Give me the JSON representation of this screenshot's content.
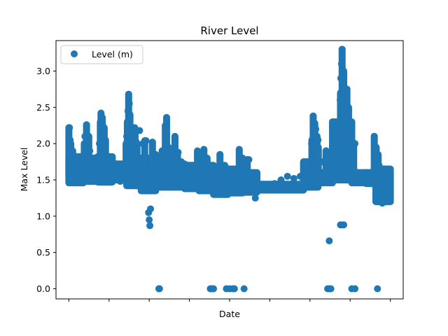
{
  "chart_data": {
    "type": "scatter",
    "title": "River Level",
    "xlabel": "Date",
    "ylabel": "Max Level",
    "ylim": [
      -0.14,
      3.42
    ],
    "yticks": [
      0.0,
      0.5,
      1.0,
      1.5,
      2.0,
      2.5,
      3.0
    ],
    "ytick_labels": [
      "0.0",
      "0.5",
      "1.0",
      "1.5",
      "2.0",
      "2.5",
      "3.0"
    ],
    "xlim": [
      -0.04,
      1.04
    ],
    "xticks": [
      0.0,
      0.125,
      0.25,
      0.375,
      0.5,
      0.625,
      0.75,
      0.875,
      1.0
    ],
    "xtick_labels": [
      "",
      "",
      "",
      "",
      "",
      "",
      "",
      "",
      ""
    ],
    "grid": false,
    "legend_position": "top-left",
    "color": "#1f77b4",
    "series": [
      {
        "name": "Level (m)",
        "points": [
          [
            0.0,
            1.5
          ],
          [
            0.02,
            1.6
          ],
          [
            0.04,
            1.55
          ],
          [
            0.06,
            1.7
          ],
          [
            0.08,
            1.62
          ],
          [
            0.1,
            1.75
          ],
          [
            0.12,
            1.58
          ],
          [
            0.14,
            1.5
          ],
          [
            0.16,
            1.48
          ],
          [
            0.18,
            1.65
          ],
          [
            0.2,
            1.68
          ],
          [
            0.22,
            1.55
          ],
          [
            0.24,
            1.6
          ],
          [
            0.26,
            1.45
          ],
          [
            0.28,
            1.52
          ],
          [
            0.3,
            1.58
          ],
          [
            0.32,
            1.5
          ],
          [
            0.34,
            1.62
          ],
          [
            0.36,
            1.55
          ],
          [
            0.38,
            1.48
          ],
          [
            0.4,
            1.45
          ],
          [
            0.42,
            1.5
          ],
          [
            0.44,
            1.55
          ],
          [
            0.46,
            1.42
          ],
          [
            0.48,
            1.45
          ],
          [
            0.5,
            1.4
          ],
          [
            0.52,
            1.4
          ],
          [
            0.54,
            1.4
          ],
          [
            0.56,
            1.4
          ],
          [
            0.58,
            1.4
          ],
          [
            0.6,
            1.4
          ],
          [
            0.62,
            1.4
          ],
          [
            0.64,
            1.45
          ],
          [
            0.66,
            1.5
          ],
          [
            0.68,
            1.55
          ],
          [
            0.7,
            1.52
          ],
          [
            0.72,
            1.55
          ],
          [
            0.74,
            1.5
          ],
          [
            0.76,
            1.6
          ],
          [
            0.78,
            1.55
          ],
          [
            0.8,
            1.6
          ],
          [
            0.82,
            1.52
          ],
          [
            0.84,
            1.55
          ],
          [
            0.86,
            1.5
          ],
          [
            0.88,
            1.55
          ],
          [
            0.9,
            1.48
          ],
          [
            0.92,
            1.5
          ],
          [
            0.94,
            1.45
          ],
          [
            0.96,
            1.4
          ],
          [
            0.98,
            1.45
          ],
          [
            1.0,
            1.5
          ],
          [
            0.002,
            2.22
          ],
          [
            0.004,
            2.05
          ],
          [
            0.006,
            1.95
          ],
          [
            0.008,
            1.8
          ],
          [
            0.05,
            2.1
          ],
          [
            0.055,
            2.26
          ],
          [
            0.06,
            2.05
          ],
          [
            0.065,
            1.9
          ],
          [
            0.095,
            2.0
          ],
          [
            0.1,
            2.42
          ],
          [
            0.104,
            2.35
          ],
          [
            0.108,
            2.1
          ],
          [
            0.11,
            2.22
          ],
          [
            0.112,
            2.05
          ],
          [
            0.18,
            2.1
          ],
          [
            0.182,
            2.28
          ],
          [
            0.184,
            2.45
          ],
          [
            0.186,
            2.68
          ],
          [
            0.188,
            2.55
          ],
          [
            0.19,
            2.35
          ],
          [
            0.2,
            2.15
          ],
          [
            0.205,
            2.22
          ],
          [
            0.21,
            2.02
          ],
          [
            0.22,
            2.18
          ],
          [
            0.23,
            2.0
          ],
          [
            0.24,
            2.04
          ],
          [
            0.248,
            1.05
          ],
          [
            0.25,
            0.95
          ],
          [
            0.252,
            0.87
          ],
          [
            0.254,
            1.1
          ],
          [
            0.26,
            2.02
          ],
          [
            0.27,
            1.85
          ],
          [
            0.28,
            0.0
          ],
          [
            0.282,
            0.0
          ],
          [
            0.3,
            1.95
          ],
          [
            0.302,
            2.25
          ],
          [
            0.304,
            2.36
          ],
          [
            0.31,
            1.9
          ],
          [
            0.33,
            2.08
          ],
          [
            0.34,
            1.88
          ],
          [
            0.35,
            1.75
          ],
          [
            0.42,
            1.92
          ],
          [
            0.43,
            1.75
          ],
          [
            0.44,
            0.0
          ],
          [
            0.445,
            0.0
          ],
          [
            0.45,
            0.0
          ],
          [
            0.47,
            1.85
          ],
          [
            0.48,
            1.65
          ],
          [
            0.49,
            0.0
          ],
          [
            0.5,
            0.0
          ],
          [
            0.51,
            0.0
          ],
          [
            0.515,
            0.0
          ],
          [
            0.53,
            1.92
          ],
          [
            0.54,
            1.8
          ],
          [
            0.545,
            0.0
          ],
          [
            0.56,
            1.78
          ],
          [
            0.58,
            1.25
          ],
          [
            0.75,
            1.6
          ],
          [
            0.755,
            2.0
          ],
          [
            0.76,
            2.38
          ],
          [
            0.762,
            2.28
          ],
          [
            0.768,
            2.2
          ],
          [
            0.775,
            2.05
          ],
          [
            0.79,
            1.75
          ],
          [
            0.8,
            1.9
          ],
          [
            0.81,
            0.66
          ],
          [
            0.805,
            0.0
          ],
          [
            0.81,
            0.0
          ],
          [
            0.815,
            0.0
          ],
          [
            0.84,
            1.9
          ],
          [
            0.842,
            2.2
          ],
          [
            0.844,
            2.6
          ],
          [
            0.846,
            2.9
          ],
          [
            0.848,
            3.1
          ],
          [
            0.85,
            3.3
          ],
          [
            0.852,
            3.0
          ],
          [
            0.854,
            2.75
          ],
          [
            0.856,
            2.5
          ],
          [
            0.858,
            2.3
          ],
          [
            0.86,
            2.7
          ],
          [
            0.865,
            2.75
          ],
          [
            0.87,
            2.45
          ],
          [
            0.875,
            2.2
          ],
          [
            0.85,
            0.88
          ],
          [
            0.855,
            0.88
          ],
          [
            0.845,
            0.88
          ],
          [
            0.88,
            2.16
          ],
          [
            0.885,
            1.92
          ],
          [
            0.89,
            2.0
          ],
          [
            0.88,
            0.0
          ],
          [
            0.89,
            0.0
          ],
          [
            0.95,
            2.1
          ],
          [
            0.955,
            1.95
          ],
          [
            0.96,
            1.8
          ],
          [
            0.965,
            1.7
          ],
          [
            0.96,
            0.0
          ],
          [
            0.97,
            1.25
          ],
          [
            0.975,
            1.18
          ],
          [
            0.98,
            1.3
          ],
          [
            0.99,
            1.35
          ]
        ]
      }
    ],
    "bands": [
      {
        "x0": 0.0,
        "x1": 0.045,
        "y0": 1.46,
        "y1": 1.82
      },
      {
        "x0": 0.045,
        "x1": 0.09,
        "y0": 1.48,
        "y1": 1.8
      },
      {
        "x0": 0.09,
        "x1": 0.135,
        "y0": 1.47,
        "y1": 1.82
      },
      {
        "x0": 0.135,
        "x1": 0.18,
        "y0": 1.5,
        "y1": 1.72
      },
      {
        "x0": 0.18,
        "x1": 0.225,
        "y0": 1.42,
        "y1": 1.8
      },
      {
        "x0": 0.225,
        "x1": 0.27,
        "y0": 1.35,
        "y1": 1.8
      },
      {
        "x0": 0.27,
        "x1": 0.315,
        "y0": 1.4,
        "y1": 1.72
      },
      {
        "x0": 0.315,
        "x1": 0.36,
        "y0": 1.4,
        "y1": 1.68
      },
      {
        "x0": 0.36,
        "x1": 0.405,
        "y0": 1.38,
        "y1": 1.7
      },
      {
        "x0": 0.405,
        "x1": 0.45,
        "y0": 1.35,
        "y1": 1.7
      },
      {
        "x0": 0.45,
        "x1": 0.495,
        "y0": 1.3,
        "y1": 1.62
      },
      {
        "x0": 0.495,
        "x1": 0.54,
        "y0": 1.32,
        "y1": 1.65
      },
      {
        "x0": 0.54,
        "x1": 0.585,
        "y0": 1.33,
        "y1": 1.6
      },
      {
        "x0": 0.585,
        "x1": 0.73,
        "y0": 1.36,
        "y1": 1.44
      },
      {
        "x0": 0.73,
        "x1": 0.775,
        "y0": 1.4,
        "y1": 1.75
      },
      {
        "x0": 0.775,
        "x1": 0.82,
        "y0": 1.46,
        "y1": 1.6
      },
      {
        "x0": 0.82,
        "x1": 0.88,
        "y0": 1.5,
        "y1": 2.3
      },
      {
        "x0": 0.88,
        "x1": 0.925,
        "y0": 1.46,
        "y1": 1.6
      },
      {
        "x0": 0.925,
        "x1": 0.955,
        "y0": 1.45,
        "y1": 1.6
      },
      {
        "x0": 0.955,
        "x1": 1.0,
        "y0": 1.2,
        "y1": 1.65
      }
    ],
    "spikes": [
      {
        "x": 0.0,
        "y1": 2.22
      },
      {
        "x": 0.006,
        "y1": 2.0
      },
      {
        "x": 0.012,
        "y1": 1.9
      },
      {
        "x": 0.048,
        "y1": 2.0
      },
      {
        "x": 0.055,
        "y1": 2.26
      },
      {
        "x": 0.062,
        "y1": 2.1
      },
      {
        "x": 0.098,
        "y1": 2.3
      },
      {
        "x": 0.1,
        "y1": 2.42
      },
      {
        "x": 0.104,
        "y1": 2.36
      },
      {
        "x": 0.11,
        "y1": 2.2
      },
      {
        "x": 0.114,
        "y1": 2.05
      },
      {
        "x": 0.178,
        "y1": 2.0
      },
      {
        "x": 0.182,
        "y1": 2.3
      },
      {
        "x": 0.186,
        "y1": 2.68
      },
      {
        "x": 0.19,
        "y1": 2.4
      },
      {
        "x": 0.2,
        "y1": 2.22
      },
      {
        "x": 0.206,
        "y1": 2.18
      },
      {
        "x": 0.212,
        "y1": 2.0
      },
      {
        "x": 0.236,
        "y1": 2.04
      },
      {
        "x": 0.26,
        "y1": 2.02
      },
      {
        "x": 0.264,
        "y1": 1.85
      },
      {
        "x": 0.29,
        "y1": 1.9
      },
      {
        "x": 0.3,
        "y1": 2.25
      },
      {
        "x": 0.304,
        "y1": 2.36
      },
      {
        "x": 0.31,
        "y1": 1.95
      },
      {
        "x": 0.33,
        "y1": 2.1
      },
      {
        "x": 0.338,
        "y1": 1.85
      },
      {
        "x": 0.36,
        "y1": 1.72
      },
      {
        "x": 0.4,
        "y1": 1.9
      },
      {
        "x": 0.42,
        "y1": 1.92
      },
      {
        "x": 0.43,
        "y1": 1.8
      },
      {
        "x": 0.47,
        "y1": 1.85
      },
      {
        "x": 0.485,
        "y1": 1.7
      },
      {
        "x": 0.53,
        "y1": 1.92
      },
      {
        "x": 0.54,
        "y1": 1.8
      },
      {
        "x": 0.555,
        "y1": 1.78
      },
      {
        "x": 0.75,
        "y1": 1.75
      },
      {
        "x": 0.756,
        "y1": 2.05
      },
      {
        "x": 0.76,
        "y1": 2.38
      },
      {
        "x": 0.765,
        "y1": 2.28
      },
      {
        "x": 0.772,
        "y1": 2.1
      },
      {
        "x": 0.776,
        "y1": 1.95
      },
      {
        "x": 0.8,
        "y1": 1.9
      },
      {
        "x": 0.84,
        "y1": 2.0
      },
      {
        "x": 0.845,
        "y1": 2.7
      },
      {
        "x": 0.85,
        "y1": 3.3
      },
      {
        "x": 0.855,
        "y1": 3.0
      },
      {
        "x": 0.86,
        "y1": 2.7
      },
      {
        "x": 0.865,
        "y1": 2.75
      },
      {
        "x": 0.87,
        "y1": 2.5
      },
      {
        "x": 0.88,
        "y1": 2.16
      },
      {
        "x": 0.886,
        "y1": 1.95
      },
      {
        "x": 0.95,
        "y1": 2.1
      },
      {
        "x": 0.956,
        "y1": 1.95
      },
      {
        "x": 0.962,
        "y1": 1.85
      }
    ]
  }
}
